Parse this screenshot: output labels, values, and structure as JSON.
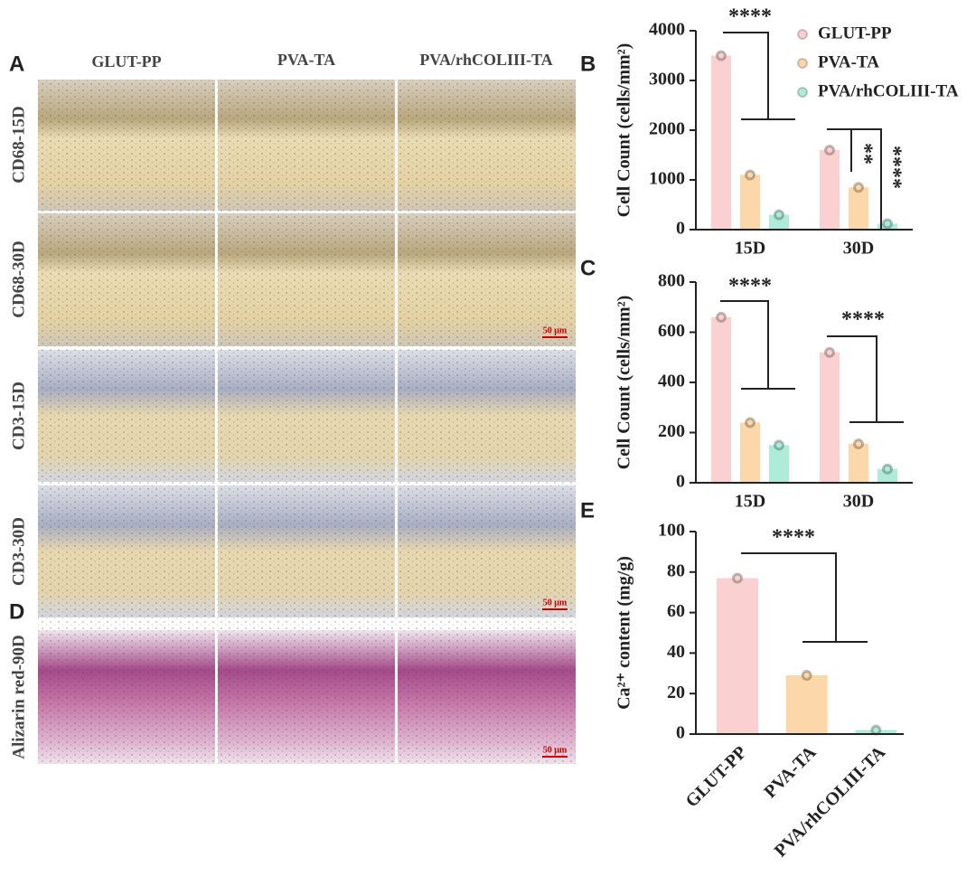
{
  "panel_labels": [
    "A",
    "B",
    "C",
    "D",
    "E"
  ],
  "columns": [
    "GLUT-PP",
    "PVA-TA",
    "PVA/rhCOLIII-TA"
  ],
  "rows": [
    "CD68-15D",
    "CD68-30D",
    "CD3-15D",
    "CD3-30D",
    "Alizarin red-90D"
  ],
  "scale_bar": "50 μm",
  "chart_data": [
    {
      "type": "bar",
      "y_label": "Cell Count (cells/mm²)",
      "categories": [
        "15D",
        "30D"
      ],
      "series": [
        {
          "name": "GLUT-PP",
          "color": "#fad0d0",
          "values": [
            3500,
            1600
          ]
        },
        {
          "name": "PVA-TA",
          "color": "#fbd7aa",
          "values": [
            1100,
            850
          ]
        },
        {
          "name": "PVA/rhCOLIII-TA",
          "color": "#aeecd9",
          "values": [
            300,
            120
          ]
        }
      ],
      "ylim": [
        0,
        4000
      ],
      "yticks": [
        0,
        1000,
        2000,
        3000,
        4000
      ],
      "annotations": [
        "****",
        "**",
        "****"
      ]
    },
    {
      "type": "bar",
      "y_label": "Cell Count (cells/mm²)",
      "categories": [
        "15D",
        "30D"
      ],
      "series": [
        {
          "color": "#fad0d0",
          "values": [
            660,
            520
          ]
        },
        {
          "color": "#fbd7aa",
          "values": [
            240,
            155
          ]
        },
        {
          "color": "#aeecd9",
          "values": [
            150,
            55
          ]
        }
      ],
      "ylim": [
        0,
        800
      ],
      "yticks": [
        0,
        200,
        400,
        600,
        800
      ],
      "annotations": [
        "****",
        "****"
      ]
    },
    {
      "type": "bar",
      "y_label": "Ca²⁺ content (mg/g)",
      "categories": [
        "GLUT-PP",
        "PVA-TA",
        "PVA/rhCOLIII-TA"
      ],
      "values": [
        77,
        29,
        2
      ],
      "colors": [
        "#fad0d0",
        "#fbd7aa",
        "#aeecd9"
      ],
      "ylim": [
        0,
        100
      ],
      "yticks": [
        0,
        20,
        40,
        60,
        80,
        100
      ],
      "annotations": [
        "****"
      ]
    }
  ]
}
